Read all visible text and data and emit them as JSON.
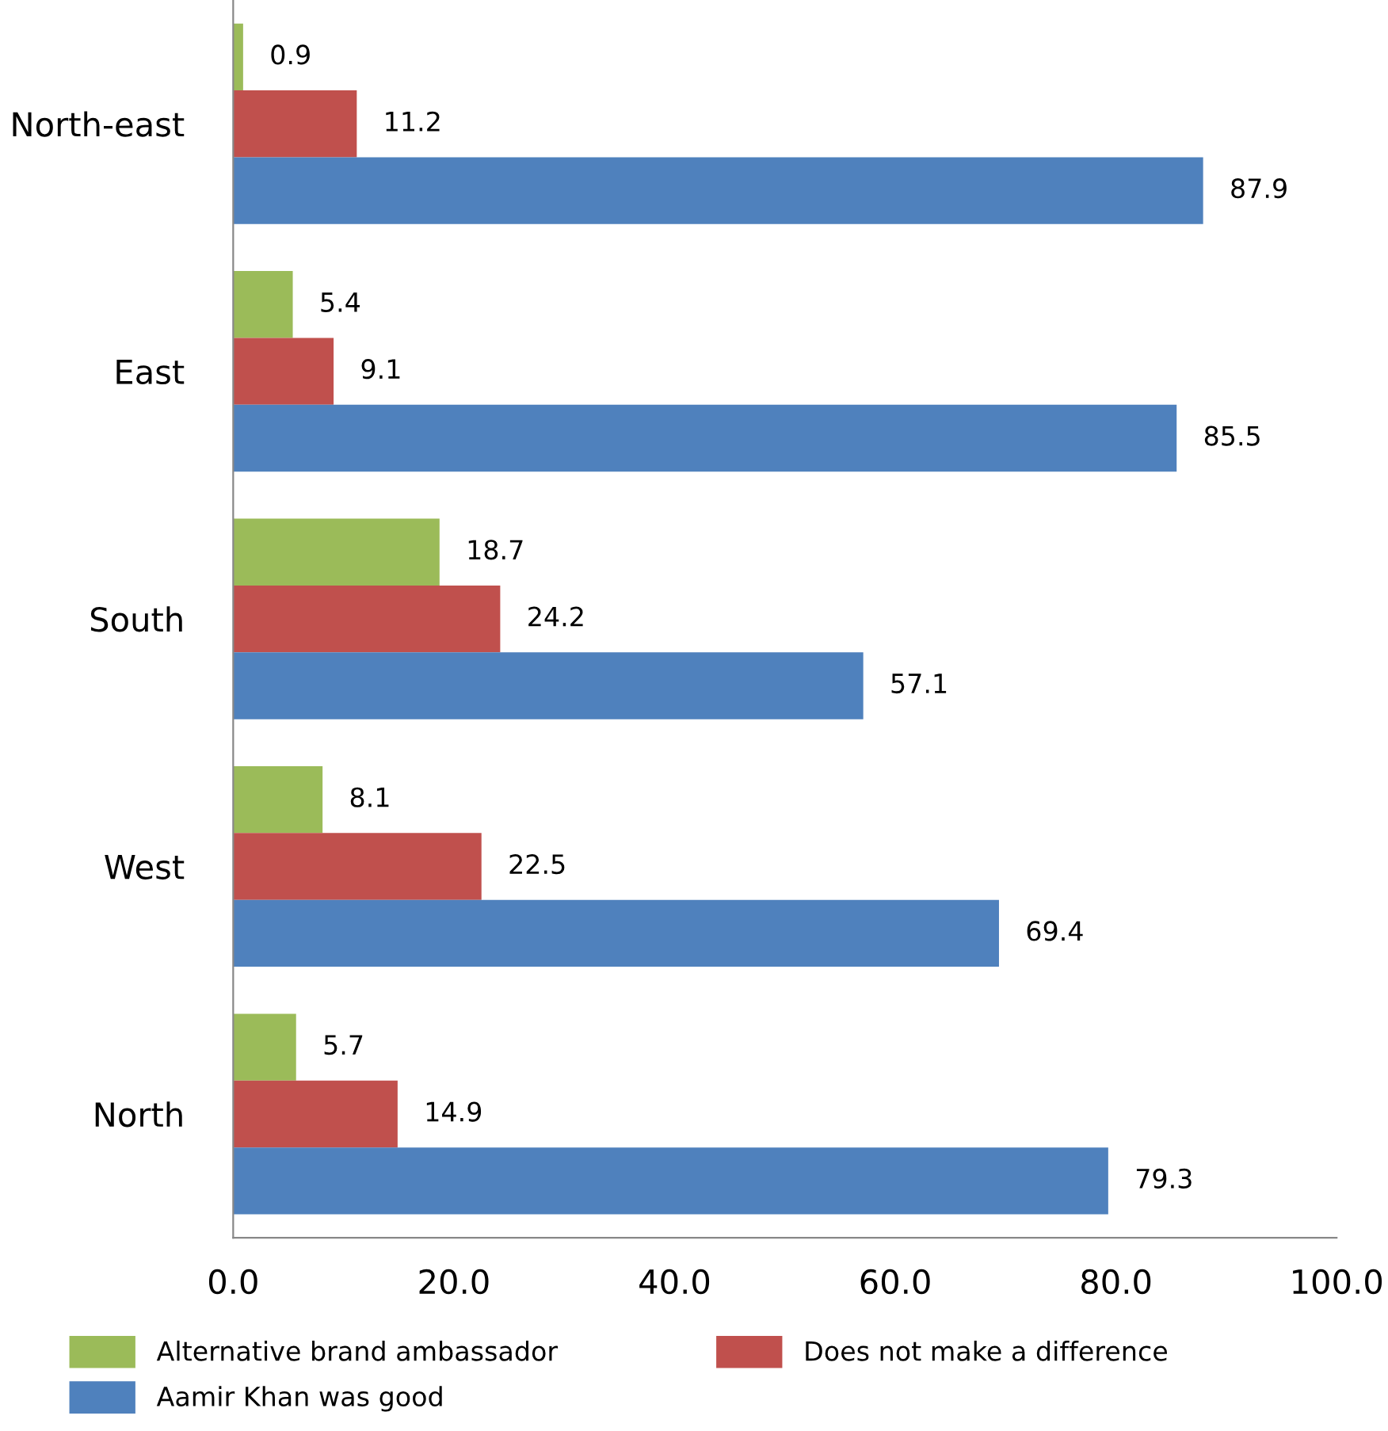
{
  "chart_data": {
    "type": "bar",
    "orientation": "horizontal",
    "categories": [
      "North-east",
      "East",
      "South",
      "West",
      "North"
    ],
    "series": [
      {
        "name": "Alternative brand ambassador",
        "color": "#9bbb59",
        "values": [
          0.9,
          5.4,
          18.7,
          8.1,
          5.7
        ]
      },
      {
        "name": "Does not make a difference",
        "color": "#c0504d",
        "values": [
          11.2,
          9.1,
          24.2,
          22.5,
          14.9
        ]
      },
      {
        "name": "Aamir Khan was good",
        "color": "#4f81bd",
        "values": [
          87.9,
          85.5,
          57.1,
          69.4,
          79.3
        ]
      }
    ],
    "xlim": [
      0,
      100
    ],
    "xticks": [
      {
        "value": 0,
        "label": "0.0"
      },
      {
        "value": 20,
        "label": "20.0"
      },
      {
        "value": 40,
        "label": "40.0"
      },
      {
        "value": 60,
        "label": "60.0"
      },
      {
        "value": 80,
        "label": "80.0"
      },
      {
        "value": 100,
        "label": "100.0"
      }
    ],
    "data_labels": true,
    "grid": false,
    "legend": "bottom"
  }
}
